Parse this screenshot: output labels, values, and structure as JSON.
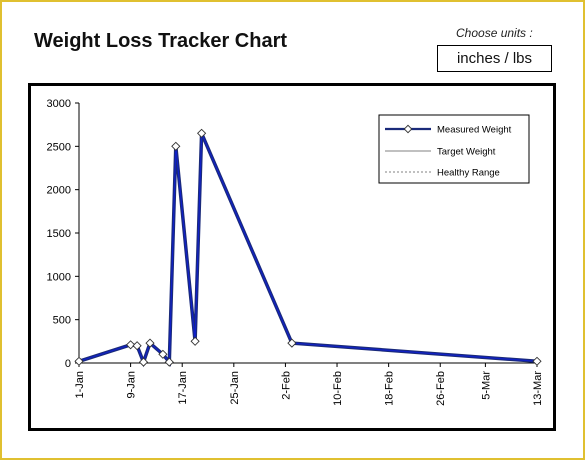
{
  "header": {
    "title": "Weight Loss Tracker Chart",
    "units_label": "Choose units :",
    "units_value": "inches / lbs"
  },
  "colors": {
    "frame": "#e0c030",
    "series_measured": "#1a2a7a",
    "series_measured_inner": "#1020c8",
    "target": "#808080",
    "healthy": "#808080"
  },
  "chart_data": {
    "type": "line",
    "title": "",
    "xlabel": "",
    "ylabel": "",
    "ylim": [
      0,
      3000
    ],
    "yticks": [
      0,
      500,
      1000,
      1500,
      2000,
      2500,
      3000
    ],
    "xticks": [
      "1-Jan",
      "9-Jan",
      "17-Jan",
      "25-Jan",
      "2-Feb",
      "10-Feb",
      "18-Feb",
      "26-Feb",
      "5-Mar",
      "13-Mar"
    ],
    "x_start": "1-Jan",
    "x_end": "13-Mar",
    "legend": [
      "Measured Weight",
      "Target Weight",
      "Healthy Range"
    ],
    "legend_position": "top-right",
    "grid": false,
    "series": [
      {
        "name": "Measured Weight",
        "points": [
          {
            "x": "1-Jan",
            "y": 20
          },
          {
            "x": "9-Jan",
            "y": 210
          },
          {
            "x": "10-Jan",
            "y": 200
          },
          {
            "x": "11-Jan",
            "y": 10
          },
          {
            "x": "12-Jan",
            "y": 230
          },
          {
            "x": "14-Jan",
            "y": 100
          },
          {
            "x": "15-Jan",
            "y": 10
          },
          {
            "x": "16-Jan",
            "y": 2500
          },
          {
            "x": "19-Jan",
            "y": 250
          },
          {
            "x": "20-Jan",
            "y": 2650
          },
          {
            "x": "3-Feb",
            "y": 230
          },
          {
            "x": "13-Mar",
            "y": 20
          }
        ]
      },
      {
        "name": "Target Weight",
        "points": []
      },
      {
        "name": "Healthy Range",
        "points": []
      }
    ]
  }
}
